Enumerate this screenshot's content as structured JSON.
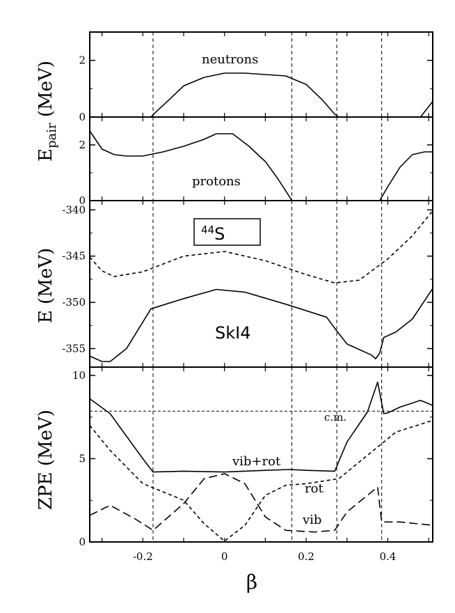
{
  "figure": {
    "xlabel": "β",
    "x_tick_labels": [
      "-0.2",
      "0",
      "0.2",
      "0.4"
    ],
    "vertical_lines_beta": [
      -0.175,
      0.165,
      0.275,
      0.385
    ]
  },
  "chart_data": [
    {
      "type": "line",
      "panel": "neutron pairing",
      "ylim": [
        0,
        3
      ],
      "xlim": [
        -0.33,
        0.51
      ],
      "y_tick_labels": [
        "0",
        "2"
      ],
      "series": [
        {
          "name": "neutrons",
          "style": "solid",
          "x": [
            -0.33,
            -0.18,
            -0.17,
            -0.14,
            -0.1,
            -0.05,
            0.0,
            0.05,
            0.1,
            0.15,
            0.2,
            0.24,
            0.27,
            0.28,
            0.48,
            0.51
          ],
          "y": [
            0,
            0,
            0.15,
            0.55,
            1.1,
            1.4,
            1.55,
            1.55,
            1.5,
            1.45,
            1.15,
            0.6,
            0.1,
            0,
            0,
            0.55
          ]
        }
      ],
      "annotations": [
        "neutrons"
      ]
    },
    {
      "type": "line",
      "panel": "proton pairing",
      "ylim": [
        0,
        3
      ],
      "xlim": [
        -0.33,
        0.51
      ],
      "y_tick_labels": [
        "0",
        "2"
      ],
      "series": [
        {
          "name": "protons",
          "style": "solid",
          "x": [
            -0.33,
            -0.3,
            -0.27,
            -0.24,
            -0.2,
            -0.15,
            -0.1,
            -0.05,
            -0.02,
            0.02,
            0.06,
            0.1,
            0.13,
            0.16,
            0.165,
            0.38,
            0.4,
            0.43,
            0.46,
            0.49,
            0.51
          ],
          "y": [
            2.5,
            1.85,
            1.65,
            1.6,
            1.6,
            1.75,
            1.95,
            2.2,
            2.4,
            2.4,
            1.95,
            1.4,
            0.8,
            0.12,
            0,
            0,
            0.5,
            1.2,
            1.65,
            1.75,
            1.75
          ]
        }
      ],
      "annotations": [
        "protons"
      ]
    },
    {
      "type": "line",
      "panel": "energy",
      "ylim": [
        -357,
        -339
      ],
      "xlim": [
        -0.33,
        0.51
      ],
      "y_tick_labels": [
        "-340",
        "-345",
        "-350",
        "-355"
      ],
      "series": [
        {
          "name": "dashed",
          "style": "dashed",
          "x": [
            -0.33,
            -0.3,
            -0.27,
            -0.2,
            -0.1,
            0.0,
            0.1,
            0.2,
            0.27,
            0.33,
            0.4,
            0.46,
            0.51
          ],
          "y": [
            -345.1,
            -346.6,
            -347.2,
            -346.7,
            -345.0,
            -344.5,
            -345.5,
            -347.0,
            -347.9,
            -347.6,
            -345.3,
            -342.8,
            -340.1
          ]
        },
        {
          "name": "solid",
          "style": "solid",
          "x": [
            -0.33,
            -0.3,
            -0.28,
            -0.24,
            -0.18,
            -0.1,
            -0.02,
            0.05,
            0.15,
            0.25,
            0.27,
            0.3,
            0.36,
            0.37,
            0.38,
            0.39,
            0.42,
            0.46,
            0.51
          ],
          "y": [
            -355.8,
            -356.4,
            -356.4,
            -355.0,
            -350.7,
            -349.6,
            -348.6,
            -348.9,
            -350.2,
            -351.6,
            -352.8,
            -354.5,
            -355.7,
            -356.1,
            -355.5,
            -353.8,
            -353.2,
            -351.8,
            -348.5
          ]
        }
      ],
      "annotations": [
        "44S",
        "SkI4"
      ]
    },
    {
      "type": "line",
      "panel": "ZPE",
      "ylim": [
        0,
        10.5
      ],
      "xlim": [
        -0.33,
        0.51
      ],
      "y_tick_labels": [
        "0",
        "5",
        "10"
      ],
      "series": [
        {
          "name": "c.m.",
          "style": "thin-dashed",
          "x": [
            -0.33,
            0.51
          ],
          "y": [
            7.85,
            7.85
          ]
        },
        {
          "name": "vib+rot",
          "style": "solid",
          "x": [
            -0.33,
            -0.28,
            -0.2,
            -0.175,
            -0.1,
            0.0,
            0.1,
            0.16,
            0.2,
            0.27,
            0.3,
            0.35,
            0.375,
            0.39,
            0.4,
            0.43,
            0.48,
            0.51
          ],
          "y": [
            8.6,
            7.7,
            5.0,
            4.2,
            4.25,
            4.2,
            4.3,
            4.35,
            4.3,
            4.25,
            6.0,
            7.8,
            9.6,
            7.7,
            7.75,
            8.1,
            8.5,
            8.2
          ]
        },
        {
          "name": "rot",
          "style": "dashed",
          "x": [
            -0.33,
            -0.28,
            -0.2,
            -0.1,
            -0.05,
            0.0,
            0.05,
            0.1,
            0.15,
            0.2,
            0.28,
            0.35,
            0.42,
            0.51
          ],
          "y": [
            7.0,
            5.5,
            3.5,
            2.5,
            1.1,
            0.05,
            1.0,
            2.8,
            3.4,
            3.5,
            3.8,
            5.2,
            6.6,
            7.3
          ]
        },
        {
          "name": "vib",
          "style": "long-dashed",
          "x": [
            -0.33,
            -0.28,
            -0.22,
            -0.175,
            -0.1,
            -0.05,
            0.0,
            0.05,
            0.1,
            0.15,
            0.22,
            0.27,
            0.3,
            0.35,
            0.375,
            0.385,
            0.43,
            0.51
          ],
          "y": [
            1.6,
            2.2,
            1.4,
            0.7,
            2.3,
            3.8,
            4.1,
            3.5,
            1.5,
            0.7,
            0.6,
            0.7,
            1.8,
            2.8,
            3.3,
            1.2,
            1.2,
            1.0
          ]
        }
      ],
      "annotations": [
        "c.m.",
        "vib+rot",
        "rot",
        "vib"
      ]
    }
  ],
  "labels": {
    "epair_main": "E",
    "epair_sub": "pair",
    "epair_unit": " (MeV)",
    "e_axis": "E (MeV)",
    "zpe_axis": "ZPE (MeV)",
    "neutrons": "neutrons",
    "protons": "protons",
    "nucleus_mass": "44",
    "nucleus_symbol": "S",
    "force": "SkI4",
    "cm": "c.m.",
    "vibrot": "vib+rot",
    "rot": "rot",
    "vib": "vib"
  }
}
